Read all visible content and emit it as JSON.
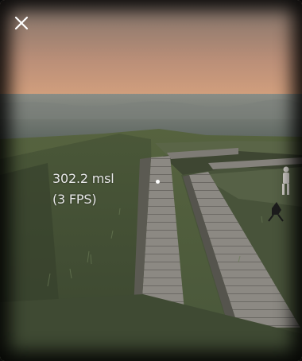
{
  "hud": {
    "altitude": "302.2 msl",
    "fps": "(3 FPS)"
  },
  "icons": {
    "close": "close-icon",
    "crosshair": "crosshair-dot"
  },
  "colors": {
    "sky_top": "#8a7a6e",
    "sky_horizon": "#d9a07c",
    "sea": "#6f7774",
    "grass": "#4d5a3c",
    "grass_dark": "#3a4530",
    "boardwalk": "#8a8782",
    "hud_text": "#e8e8e8"
  }
}
